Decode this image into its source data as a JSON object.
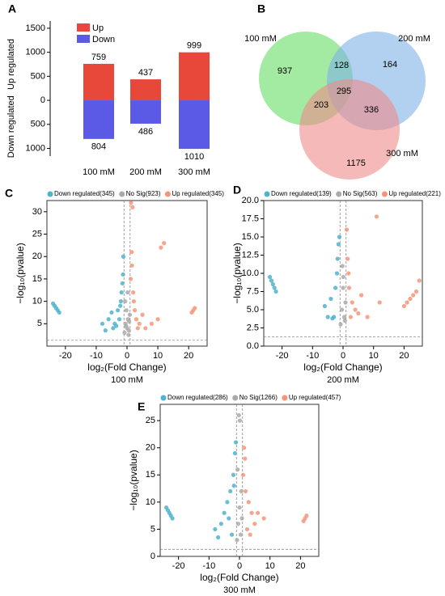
{
  "chart_data": [
    {
      "type": "bar",
      "panel": "A",
      "categories": [
        "100 mM",
        "200 mM",
        "300 mM"
      ],
      "series": [
        {
          "name": "Up",
          "color": "#e8483a",
          "values": [
            759,
            437,
            999
          ]
        },
        {
          "name": "Down",
          "color": "#5a5ae6",
          "values": [
            -804,
            -486,
            -1010
          ],
          "value_labels": [
            "804",
            "486",
            "1010"
          ]
        }
      ],
      "ylabel_up": "Up regulated",
      "ylabel_down": "Down regulated",
      "ylim": [
        -1160,
        1650
      ],
      "yticks": [
        {
          "value": -1000,
          "label": "1000"
        },
        {
          "value": -500,
          "label": "500"
        },
        0,
        500,
        1000,
        1500
      ]
    },
    {
      "type": "venn",
      "panel": "B",
      "sets": [
        {
          "name": "100 mM",
          "color": "#66dd66"
        },
        {
          "name": "200 mM",
          "color": "#7fb0e4"
        },
        {
          "name": "300 mM",
          "color": "#f08a8a"
        }
      ],
      "values": [
        937,
        164,
        1175,
        128,
        203,
        336,
        295
      ]
    },
    {
      "type": "scatter",
      "panel": "C",
      "subtitle": "100 mM",
      "xlabel": "log₂(Fold Change)",
      "ylabel": "−log₁₀(pvalue)",
      "xlim": [
        -26,
        26
      ],
      "ylim": [
        0,
        32.5
      ],
      "xticks": [
        -20,
        -10,
        0,
        10,
        20
      ],
      "yticks": [
        5,
        10,
        15,
        20,
        25,
        30
      ],
      "vlines": [
        -1,
        1
      ],
      "hline": 1.3,
      "series": [
        {
          "name": "Down regulated(345)",
          "color": "#4fb3cc",
          "x": [
            -24,
            -23.5,
            -23,
            -22.5,
            -22,
            -8,
            -6,
            -5,
            -4,
            -3,
            -2,
            -1.5,
            -1.2,
            -2.5,
            -3.5,
            -1.8,
            -1.3,
            -4.5,
            -7,
            -2.2
          ],
          "values": [
            9.5,
            9,
            8.5,
            8,
            7.5,
            5,
            6,
            7.5,
            5,
            8,
            10,
            14,
            20,
            6,
            4.5,
            12,
            16,
            4,
            3.5,
            9
          ]
        },
        {
          "name": "No Sig(923)",
          "color": "#aaaaaa",
          "x": [
            -0.8,
            -0.5,
            -0.2,
            0,
            0.3,
            0.6,
            0.9,
            -0.6,
            0.2,
            0.5,
            -0.3,
            0.7
          ],
          "values": [
            3,
            5,
            8,
            4,
            6,
            3.5,
            7,
            10,
            12,
            2.5,
            4.5,
            5.5
          ]
        },
        {
          "name": "Up regulated(345)",
          "color": "#f4957a",
          "x": [
            1.2,
            1.5,
            2,
            2.5,
            3,
            4,
            5,
            6,
            8,
            10,
            11,
            12,
            21,
            21.5,
            22,
            1.8,
            2.2,
            3.5,
            1.3,
            1.6
          ],
          "values": [
            15,
            21,
            12,
            8,
            6,
            5,
            7,
            4,
            5,
            6,
            22,
            23,
            7.5,
            8,
            8.5,
            31,
            10,
            4,
            32,
            18
          ]
        }
      ]
    },
    {
      "type": "scatter",
      "panel": "D",
      "subtitle": "200 mM",
      "xlabel": "log₂(Fold Change)",
      "ylabel": "−log₁₀(pvalue)",
      "xlim": [
        -26,
        26
      ],
      "ylim": [
        0,
        20
      ],
      "xticks": [
        -20,
        -10,
        0,
        10,
        20
      ],
      "yticks": [
        {
          "value": 0,
          "label": "0.0"
        },
        2.5,
        {
          "value": 5,
          "label": "5.0"
        },
        7.5,
        {
          "value": 10,
          "label": "10.0"
        },
        12.5,
        {
          "value": 15,
          "label": "15.0"
        },
        17.5,
        {
          "value": 20,
          "label": "20.0"
        }
      ],
      "vlines": [
        -1,
        1
      ],
      "hline": 1.3,
      "series": [
        {
          "name": "Down regulated(139)",
          "color": "#4fb3cc",
          "x": [
            -24,
            -23.5,
            -23,
            -22.5,
            -22,
            -6,
            -4,
            -3,
            -2.5,
            -2,
            -1.5,
            -1.2,
            -5,
            -1.8,
            -3.5
          ],
          "values": [
            9.5,
            9,
            8.5,
            8,
            7.5,
            5.5,
            6.5,
            4,
            8,
            10,
            14,
            15,
            4,
            12,
            3.8
          ]
        },
        {
          "name": "No Sig(563)",
          "color": "#aaaaaa",
          "x": [
            -0.8,
            -0.4,
            0,
            0.4,
            0.8,
            -0.2,
            0.6,
            0.1
          ],
          "values": [
            3,
            5,
            8,
            4,
            6,
            11,
            3.5,
            9.5
          ]
        },
        {
          "name": "Up regulated(221)",
          "color": "#f4957a",
          "x": [
            1.2,
            1.5,
            2,
            3,
            4,
            5,
            6,
            8,
            11,
            12,
            20,
            21,
            22,
            23,
            24,
            25,
            1.8,
            2.5
          ],
          "values": [
            16,
            12,
            8,
            6,
            5,
            4.5,
            7,
            4,
            17.8,
            6,
            5.5,
            6,
            6.5,
            7,
            7.5,
            9,
            10,
            4
          ]
        }
      ]
    },
    {
      "type": "scatter",
      "panel": "E",
      "subtitle": "300 mM",
      "xlabel": "log₂(Fold Change)",
      "ylabel": "−log₁₀(pvalue)",
      "xlim": [
        -26,
        26
      ],
      "ylim": [
        0,
        28
      ],
      "xticks": [
        -20,
        -10,
        0,
        10,
        20
      ],
      "yticks": [
        0,
        5,
        10,
        15,
        20,
        25
      ],
      "vlines": [
        -1,
        1
      ],
      "hline": 1.3,
      "series": [
        {
          "name": "Down regulated(286)",
          "color": "#4fb3cc",
          "x": [
            -24,
            -23.5,
            -23,
            -22.5,
            -22,
            -8,
            -6,
            -5,
            -4,
            -3,
            -2,
            -1.5,
            -1.2,
            -2.5,
            -1.8,
            -7,
            -3.5
          ],
          "values": [
            9,
            8.5,
            8,
            7.5,
            7,
            5,
            6,
            8,
            10,
            12,
            15,
            19,
            21,
            4,
            13,
            3.5,
            7
          ]
        },
        {
          "name": "No Sig(1266)",
          "color": "#aaaaaa",
          "x": [
            -0.8,
            -0.4,
            0,
            0.4,
            0.8,
            -0.2,
            0.6,
            0.1,
            -0.6
          ],
          "values": [
            3,
            6,
            9,
            4,
            7,
            26,
            12,
            25,
            16
          ]
        },
        {
          "name": "Up regulated(457)",
          "color": "#f4957a",
          "x": [
            1.2,
            1.5,
            2,
            3,
            4,
            5,
            6,
            8,
            21,
            21.5,
            22,
            1.8,
            2.5,
            3.5
          ],
          "values": [
            15,
            20,
            12,
            10,
            8,
            6,
            8,
            7,
            6.5,
            7,
            7.5,
            18,
            5,
            4
          ]
        }
      ]
    }
  ]
}
